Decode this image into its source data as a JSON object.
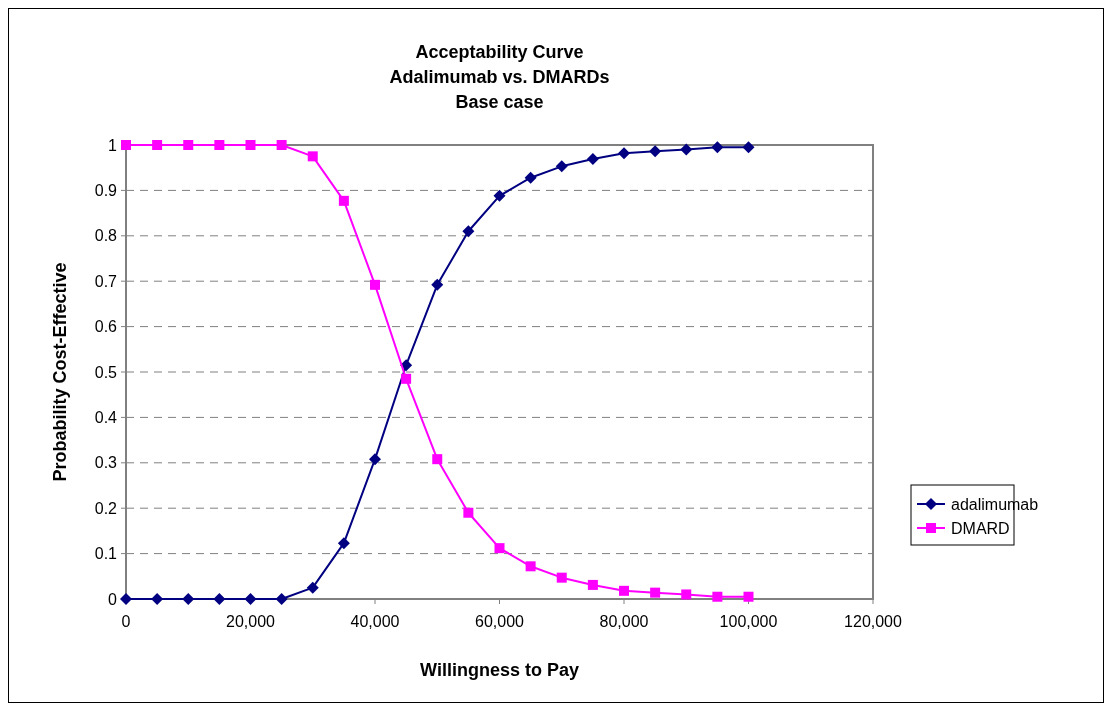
{
  "chart_data": {
    "type": "line",
    "title": [
      "Acceptability Curve",
      "Adalimumab vs. DMARDs",
      "Base case"
    ],
    "xlabel": "Willingness to Pay",
    "ylabel": "Probability Cost-Effective",
    "x": [
      0,
      5000,
      10000,
      15000,
      20000,
      25000,
      30000,
      35000,
      40000,
      45000,
      50000,
      55000,
      60000,
      65000,
      70000,
      75000,
      80000,
      85000,
      90000,
      95000,
      100000
    ],
    "series": [
      {
        "name": "adalimumab",
        "color": "#000080",
        "marker": "diamond",
        "values": [
          0,
          0,
          0,
          0,
          0,
          0,
          0.025,
          0.123,
          0.308,
          0.515,
          0.692,
          0.81,
          0.888,
          0.928,
          0.953,
          0.969,
          0.982,
          0.986,
          0.99,
          0.995,
          0.995
        ]
      },
      {
        "name": "DMARD",
        "color": "#ff00ff",
        "marker": "square",
        "values": [
          1,
          1,
          1,
          1,
          1,
          1,
          0.975,
          0.877,
          0.692,
          0.485,
          0.308,
          0.19,
          0.112,
          0.072,
          0.047,
          0.031,
          0.018,
          0.014,
          0.01,
          0.005,
          0.005
        ]
      }
    ],
    "xlim": [
      0,
      120000
    ],
    "xticks": [
      {
        "value": 0,
        "label": "0"
      },
      {
        "value": 20000,
        "label": "20,000"
      },
      {
        "value": 40000,
        "label": "40,000"
      },
      {
        "value": 60000,
        "label": "60,000"
      },
      {
        "value": 80000,
        "label": "80,000"
      },
      {
        "value": 100000,
        "label": "100,000"
      },
      {
        "value": 120000,
        "label": "120,000"
      }
    ],
    "ylim": [
      0,
      1
    ],
    "yticks": [
      0,
      0.1,
      0.2,
      0.3,
      0.4,
      0.5,
      0.6,
      0.7,
      0.8,
      0.9,
      1
    ],
    "grid": "y",
    "legend": "right",
    "line_style": "solid"
  }
}
